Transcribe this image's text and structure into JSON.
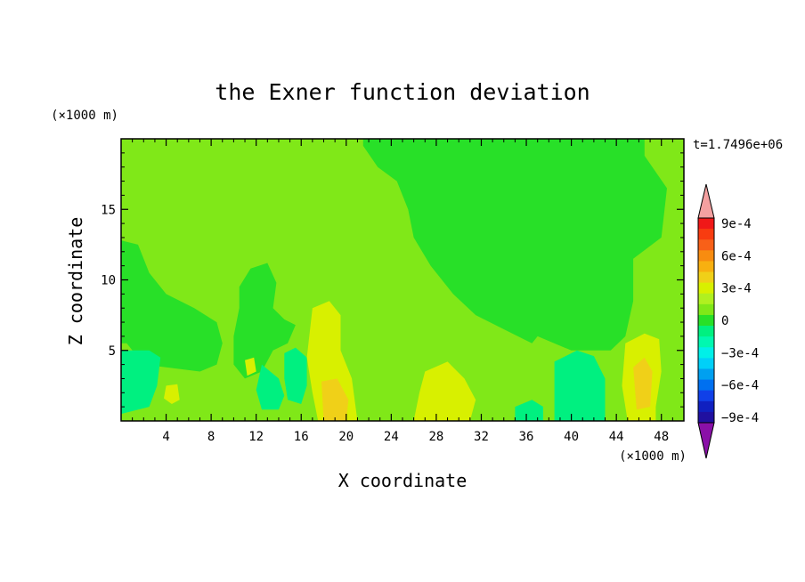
{
  "chart_data": {
    "type": "heatmap",
    "title": "the Exner function deviation",
    "xlabel": "X coordinate",
    "ylabel": "Z coordinate",
    "x_unit": "(×1000 m)",
    "y_unit": "(×1000 m)",
    "time_label": "t=1.7496e+06",
    "xlim": [
      0,
      50
    ],
    "ylim": [
      0,
      20
    ],
    "x_ticks": [
      4,
      8,
      12,
      16,
      20,
      24,
      28,
      32,
      36,
      40,
      44,
      48
    ],
    "y_ticks": [
      5,
      10,
      15
    ],
    "colorbar": {
      "labels": [
        "9e-4",
        "6e-4",
        "3e-4",
        "0",
        "−3e-4",
        "−6e-4",
        "−9e-4"
      ],
      "label_values": [
        0.0009,
        0.0006,
        0.0003,
        0,
        -0.0003,
        -0.0006,
        -0.0009
      ],
      "levels_top_to_bottom": [
        0.0009,
        0.0008,
        0.0007,
        0.0006,
        0.0005,
        0.0004,
        0.0003,
        0.0002,
        0.0001,
        0,
        -0.0001,
        -0.0002,
        -0.0003,
        -0.0004,
        -0.0005,
        -0.0006,
        -0.0007,
        -0.0008,
        -0.0009
      ],
      "colors_top_to_bottom": [
        "#f01818",
        "#f83c10",
        "#f86018",
        "#f88c10",
        "#f8b010",
        "#f0d018",
        "#d8f000",
        "#b0f020",
        "#80e818",
        "#28e028",
        "#00f080",
        "#00f8b0",
        "#00f0e8",
        "#00d0f8",
        "#00a0f0",
        "#0070f0",
        "#1040e8",
        "#1020c0",
        "#2010a0"
      ],
      "over_color": "#f4a0a0",
      "under_color": "#8a10a8"
    },
    "field": {
      "background_value": 5e-05,
      "regions": [
        {
          "name": "upper-right plateau",
          "value": -5e-05,
          "polygon": [
            [
              21.5,
              20
            ],
            [
              46.5,
              20
            ],
            [
              46.5,
              18.8
            ],
            [
              48.5,
              16.5
            ],
            [
              48,
              13
            ],
            [
              45.5,
              11.5
            ],
            [
              45.5,
              8.5
            ],
            [
              44.8,
              6
            ],
            [
              43.5,
              5
            ],
            [
              40,
              5
            ],
            [
              37,
              6
            ],
            [
              36.5,
              5.5
            ],
            [
              34,
              6.5
            ],
            [
              31.5,
              7.5
            ],
            [
              29.5,
              9
            ],
            [
              27.5,
              11
            ],
            [
              26,
              13
            ],
            [
              25.5,
              15
            ],
            [
              24.5,
              17
            ],
            [
              22.8,
              18
            ],
            [
              21.5,
              19.5
            ]
          ]
        },
        {
          "name": "upper-left band",
          "value": -5e-05,
          "polygon": [
            [
              0,
              12.8
            ],
            [
              1.5,
              12.5
            ],
            [
              2.5,
              10.5
            ],
            [
              4,
              9
            ],
            [
              6.5,
              8
            ],
            [
              8.5,
              7
            ],
            [
              9,
              5.5
            ],
            [
              8.5,
              4
            ],
            [
              7,
              3.5
            ],
            [
              4,
              3.8
            ],
            [
              2,
              4
            ],
            [
              0.5,
              5.5
            ],
            [
              0,
              5.5
            ]
          ]
        },
        {
          "name": "centre plume",
          "value": -5e-05,
          "polygon": [
            [
              10.5,
              9.5
            ],
            [
              11.5,
              10.8
            ],
            [
              13,
              11.2
            ],
            [
              13.8,
              9.8
            ],
            [
              13.5,
              8
            ],
            [
              14.5,
              7.2
            ],
            [
              15.5,
              6.8
            ],
            [
              14.8,
              5.5
            ],
            [
              13.5,
              5
            ],
            [
              12.5,
              3.5
            ],
            [
              11,
              3
            ],
            [
              10,
              4
            ],
            [
              10,
              6
            ],
            [
              10.5,
              8
            ]
          ]
        },
        {
          "name": "lower-left cyan",
          "value": -0.00015,
          "polygon": [
            [
              0,
              5
            ],
            [
              2.5,
              5
            ],
            [
              3.5,
              4.5
            ],
            [
              3.2,
              2.5
            ],
            [
              2.5,
              1
            ],
            [
              0,
              0.5
            ]
          ]
        },
        {
          "name": "lower-centre cyan",
          "value": -0.00015,
          "polygon": [
            [
              12.5,
              4
            ],
            [
              14,
              3
            ],
            [
              14.5,
              1.8
            ],
            [
              14,
              0.8
            ],
            [
              12.5,
              0.8
            ],
            [
              12,
              2.2
            ]
          ]
        },
        {
          "name": "lower-centre cyan 2",
          "value": -0.00015,
          "polygon": [
            [
              14.5,
              4.8
            ],
            [
              15.5,
              5.2
            ],
            [
              16.5,
              4.5
            ],
            [
              16.5,
              2.5
            ],
            [
              16,
              1.2
            ],
            [
              14.8,
              1.5
            ],
            [
              14.5,
              3
            ]
          ]
        },
        {
          "name": "lower-right cyan",
          "value": -0.00015,
          "polygon": [
            [
              38.5,
              4.2
            ],
            [
              40.5,
              5
            ],
            [
              42,
              4.6
            ],
            [
              43,
              3
            ],
            [
              43,
              0
            ],
            [
              38.5,
              0
            ],
            [
              38.5,
              2
            ]
          ]
        },
        {
          "name": "bottom cyan strip",
          "value": -0.00015,
          "polygon": [
            [
              35,
              1
            ],
            [
              36.5,
              1.5
            ],
            [
              37.5,
              1
            ],
            [
              37.5,
              0
            ],
            [
              35,
              0
            ]
          ]
        },
        {
          "name": "left warm core",
          "value": 0.00025,
          "polygon": [
            [
              17,
              8
            ],
            [
              18.5,
              8.5
            ],
            [
              19.5,
              7.5
            ],
            [
              19.5,
              5
            ],
            [
              20.5,
              3
            ],
            [
              21,
              0
            ],
            [
              17.5,
              0
            ],
            [
              17,
              2
            ],
            [
              16.5,
              4.5
            ]
          ]
        },
        {
          "name": "left warm centre",
          "value": 0.00035,
          "polygon": [
            [
              17.8,
              2.8
            ],
            [
              19.2,
              3
            ],
            [
              20.2,
              1.5
            ],
            [
              20,
              0
            ],
            [
              18,
              0
            ]
          ]
        },
        {
          "name": "middle warm core",
          "value": 0.00025,
          "polygon": [
            [
              27,
              3.5
            ],
            [
              29,
              4.2
            ],
            [
              30.5,
              3
            ],
            [
              31.5,
              1.5
            ],
            [
              31,
              0
            ],
            [
              26,
              0
            ],
            [
              26.5,
              2
            ]
          ]
        },
        {
          "name": "right warm core",
          "value": 0.00025,
          "polygon": [
            [
              44.8,
              5.5
            ],
            [
              46.5,
              6.2
            ],
            [
              47.8,
              5.8
            ],
            [
              48,
              3.5
            ],
            [
              47.5,
              1
            ],
            [
              47.5,
              0
            ],
            [
              45,
              0
            ],
            [
              44.5,
              2.5
            ]
          ]
        },
        {
          "name": "right warm centre",
          "value": 0.00035,
          "polygon": [
            [
              45.5,
              3.8
            ],
            [
              46.5,
              4.5
            ],
            [
              47.2,
              3.5
            ],
            [
              47,
              1
            ],
            [
              45.8,
              0.8
            ]
          ]
        },
        {
          "name": "small warm blob",
          "value": 0.00025,
          "polygon": [
            [
              4,
              2.5
            ],
            [
              5,
              2.6
            ],
            [
              5.2,
              1.5
            ],
            [
              4.5,
              1.2
            ],
            [
              3.8,
              1.6
            ]
          ]
        },
        {
          "name": "small warm blob 2",
          "value": 0.00025,
          "polygon": [
            [
              11,
              4.3
            ],
            [
              11.8,
              4.5
            ],
            [
              12,
              3.5
            ],
            [
              11.2,
              3.2
            ]
          ]
        }
      ]
    }
  }
}
